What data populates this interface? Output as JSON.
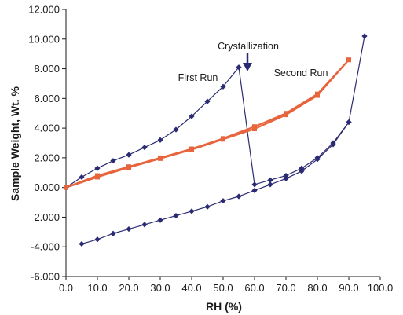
{
  "chart_data": {
    "type": "scatter",
    "title": "",
    "xlabel": "RH (%)",
    "ylabel": "Sample Weight, Wt. %",
    "xlim": [
      0,
      100
    ],
    "ylim": [
      -6,
      12
    ],
    "x_ticks": [
      "0.0",
      "10.0",
      "20.0",
      "30.0",
      "40.0",
      "50.0",
      "60.0",
      "70.0",
      "80.0",
      "90.0",
      "100.0"
    ],
    "y_ticks": [
      "-6.000",
      "-4.000",
      "-2.000",
      "0.000",
      "2.000",
      "4.000",
      "6.000",
      "8.000",
      "10.000",
      "12.000"
    ],
    "grid": false,
    "legend": "none",
    "series": [
      {
        "name": "First Run",
        "color": "#2b2b73",
        "marker": "diamond",
        "x": [
          0,
          5,
          10,
          15,
          20,
          25,
          30,
          35,
          40,
          45,
          50,
          55,
          60,
          65,
          70,
          75,
          80,
          85,
          90,
          95,
          90,
          85,
          80,
          75,
          70,
          65,
          60,
          55,
          50,
          45,
          40,
          35,
          30,
          25,
          20,
          15,
          10,
          5
        ],
        "y": [
          0.0,
          0.7,
          1.3,
          1.8,
          2.2,
          2.7,
          3.2,
          3.9,
          4.8,
          5.8,
          6.8,
          8.1,
          0.2,
          0.5,
          0.8,
          1.3,
          2.0,
          3.0,
          4.4,
          10.2,
          4.4,
          2.9,
          1.9,
          1.1,
          0.6,
          0.2,
          -0.2,
          -0.6,
          -0.9,
          -1.3,
          -1.6,
          -1.9,
          -2.2,
          -2.5,
          -2.8,
          -3.1,
          -3.5,
          -3.8
        ]
      },
      {
        "name": "Second Run",
        "color": "#e8643c",
        "marker": "square",
        "x": [
          0,
          10,
          20,
          30,
          40,
          50,
          60,
          70,
          80,
          90,
          80,
          70,
          60,
          50,
          40,
          30,
          20,
          10,
          0
        ],
        "y": [
          0.0,
          0.8,
          1.4,
          2.0,
          2.6,
          3.3,
          4.1,
          5.0,
          6.3,
          8.6,
          6.2,
          4.9,
          3.95,
          3.25,
          2.55,
          1.95,
          1.35,
          0.7,
          0.0
        ]
      }
    ],
    "annotations": {
      "crystallization": "Crystallization",
      "first_run": "First Run",
      "second_run": "Second Run"
    }
  }
}
